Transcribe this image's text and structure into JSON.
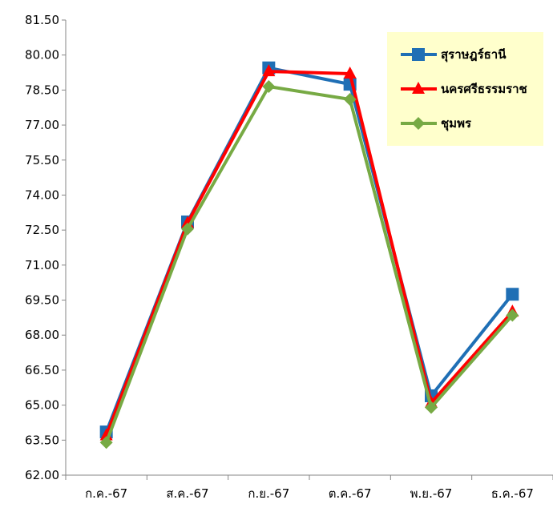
{
  "chart_data": {
    "type": "line",
    "title": "",
    "xlabel": "",
    "ylabel": "",
    "categories": [
      "ก.ค.-67",
      "ส.ค.-67",
      "ก.ย.-67",
      "ต.ค.-67",
      "พ.ย.-67",
      "ธ.ค.-67"
    ],
    "ylim": [
      62.0,
      81.5
    ],
    "yticks": [
      "62.00",
      "63.50",
      "65.00",
      "66.50",
      "68.00",
      "69.50",
      "71.00",
      "72.50",
      "74.00",
      "75.50",
      "77.00",
      "78.50",
      "80.00",
      "81.50"
    ],
    "grid": false,
    "legend_position": "top-right",
    "legend_background": "#FFFFCC",
    "series": [
      {
        "name": "สุราษฎร์ธานี",
        "marker": "square",
        "color": "#1F6FB5",
        "values": [
          63.85,
          72.85,
          79.45,
          78.75,
          65.4,
          69.75
        ]
      },
      {
        "name": "นครศรีธรรมราช",
        "marker": "triangle",
        "color": "#FF0000",
        "values": [
          63.7,
          72.8,
          79.3,
          79.2,
          65.1,
          69.0
        ]
      },
      {
        "name": "ชุมพร",
        "marker": "diamond",
        "color": "#77AA44",
        "values": [
          63.4,
          72.55,
          78.65,
          78.1,
          64.9,
          68.85
        ]
      }
    ]
  }
}
